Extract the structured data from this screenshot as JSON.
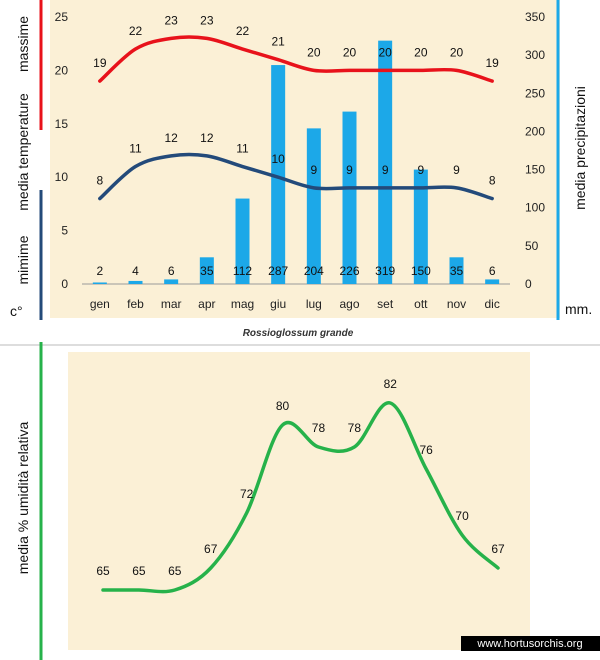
{
  "colors": {
    "background_panel": "#fbf0d6",
    "max_line": "#e8121b",
    "min_line": "#234a7a",
    "bars": "#1ca8e8",
    "humidity_line": "#26b24a",
    "gray_divider": "#bbbbbb"
  },
  "chart_data": [
    {
      "type": "bar+line",
      "months": [
        "gen",
        "feb",
        "mar",
        "apr",
        "mag",
        "giu",
        "lug",
        "ago",
        "set",
        "ott",
        "nov",
        "dic"
      ],
      "left_axis": {
        "label_top": "massime",
        "label_mid": "media  temperature",
        "label_bottom": "mimime",
        "unit": "c°",
        "ylim": [
          0,
          25
        ],
        "ticks": [
          0,
          5,
          10,
          15,
          20,
          25
        ]
      },
      "right_axis": {
        "label": "media  precipitazioni",
        "unit": "mm.",
        "ylim": [
          0,
          350
        ],
        "ticks": [
          0,
          50,
          100,
          150,
          200,
          250,
          300,
          350
        ]
      },
      "series": [
        {
          "name": "massime",
          "kind": "line",
          "axis": "left",
          "values": [
            19,
            22,
            23,
            23,
            22,
            21,
            20,
            20,
            20,
            20,
            20,
            19
          ]
        },
        {
          "name": "mimime",
          "kind": "line",
          "axis": "left",
          "values": [
            8,
            11,
            12,
            12,
            11,
            10,
            9,
            9,
            9,
            9,
            9,
            8
          ]
        },
        {
          "name": "precipitazioni",
          "kind": "bar",
          "axis": "right",
          "values": [
            2,
            4,
            6,
            35,
            112,
            287,
            204,
            226,
            319,
            150,
            35,
            6
          ]
        }
      ],
      "caption": "Rossioglossum  grande"
    },
    {
      "type": "line",
      "ylabel": "media %  umidità relativa",
      "series": [
        {
          "name": "umidità",
          "values": [
            65,
            65,
            65,
            67,
            72,
            80,
            78,
            78,
            82,
            76,
            70,
            67
          ]
        }
      ]
    }
  ],
  "watermark": "www.hortusorchis.org"
}
